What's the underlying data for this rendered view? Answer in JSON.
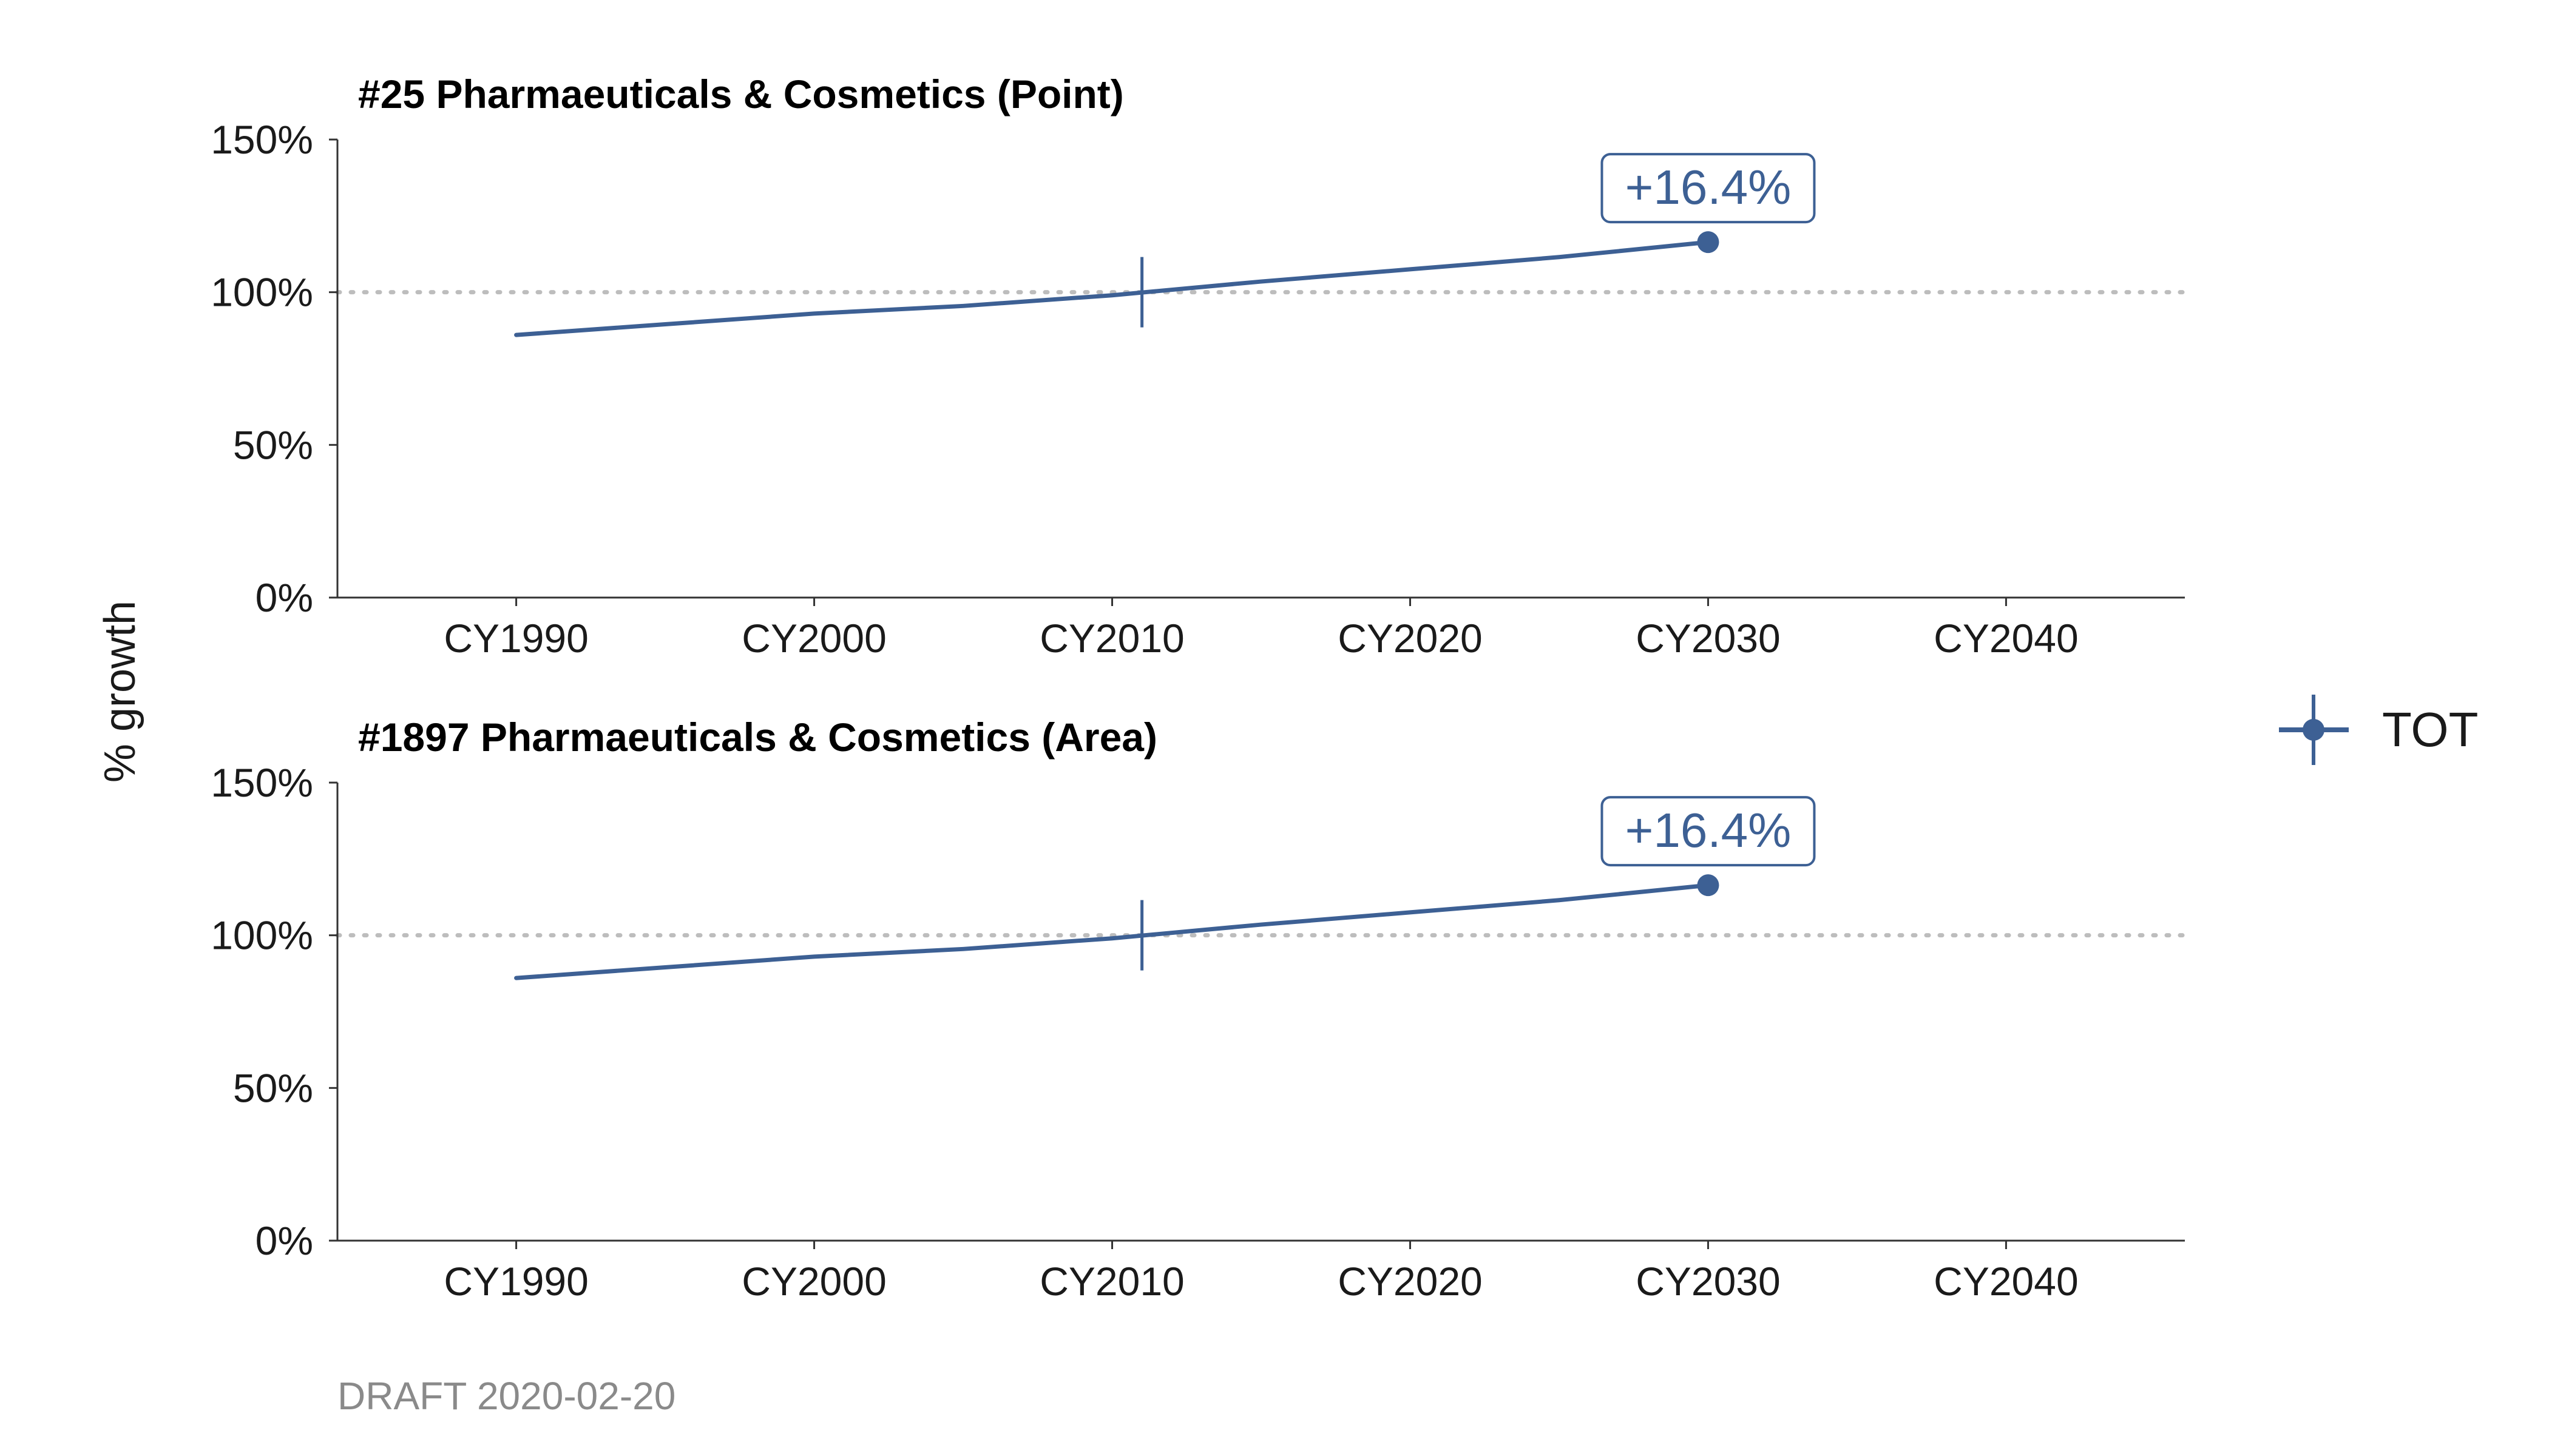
{
  "colors": {
    "series": "#3d6094",
    "axis": "#333333",
    "reference": "#bdbdbd",
    "caption": "#8a8a8a"
  },
  "ylabel": "% growth",
  "caption": "DRAFT 2020-02-20",
  "legend": {
    "label": "TOT",
    "placement": "right"
  },
  "chart_data": [
    {
      "type": "line",
      "title": "#25 Pharmaeuticals & Cosmetics (Point)",
      "x_tick_labels": [
        "CY1990",
        "CY2000",
        "CY2010",
        "CY2020",
        "CY2030",
        "CY2040"
      ],
      "x_ticks": [
        1990,
        2000,
        2010,
        2020,
        2030,
        2040
      ],
      "xlim": [
        1984,
        2046
      ],
      "ylim": [
        0,
        1.5
      ],
      "y_ticks": [
        0,
        0.5,
        1.0,
        1.5
      ],
      "y_tick_labels": [
        "0%",
        "50%",
        "100%",
        "150%"
      ],
      "reference_line": 1.0,
      "base_year": 2011,
      "series": [
        {
          "name": "TOT",
          "x": [
            1990,
            1995,
            2000,
            2005,
            2010,
            2015,
            2020,
            2025,
            2030
          ],
          "y": [
            0.86,
            0.895,
            0.93,
            0.955,
            0.99,
            1.035,
            1.075,
            1.115,
            1.164
          ]
        }
      ],
      "annotation": {
        "x": 2030,
        "y": 1.164,
        "text": "+16.4%"
      },
      "grid": false
    },
    {
      "type": "line",
      "title": "#1897 Pharmaeuticals & Cosmetics (Area)",
      "x_tick_labels": [
        "CY1990",
        "CY2000",
        "CY2010",
        "CY2020",
        "CY2030",
        "CY2040"
      ],
      "x_ticks": [
        1990,
        2000,
        2010,
        2020,
        2030,
        2040
      ],
      "xlim": [
        1984,
        2046
      ],
      "ylim": [
        0,
        1.5
      ],
      "y_ticks": [
        0,
        0.5,
        1.0,
        1.5
      ],
      "y_tick_labels": [
        "0%",
        "50%",
        "100%",
        "150%"
      ],
      "reference_line": 1.0,
      "base_year": 2011,
      "series": [
        {
          "name": "TOT",
          "x": [
            1990,
            1995,
            2000,
            2005,
            2010,
            2015,
            2020,
            2025,
            2030
          ],
          "y": [
            0.86,
            0.895,
            0.93,
            0.955,
            0.99,
            1.035,
            1.075,
            1.115,
            1.164
          ]
        }
      ],
      "annotation": {
        "x": 2030,
        "y": 1.164,
        "text": "+16.4%"
      },
      "grid": false
    }
  ]
}
